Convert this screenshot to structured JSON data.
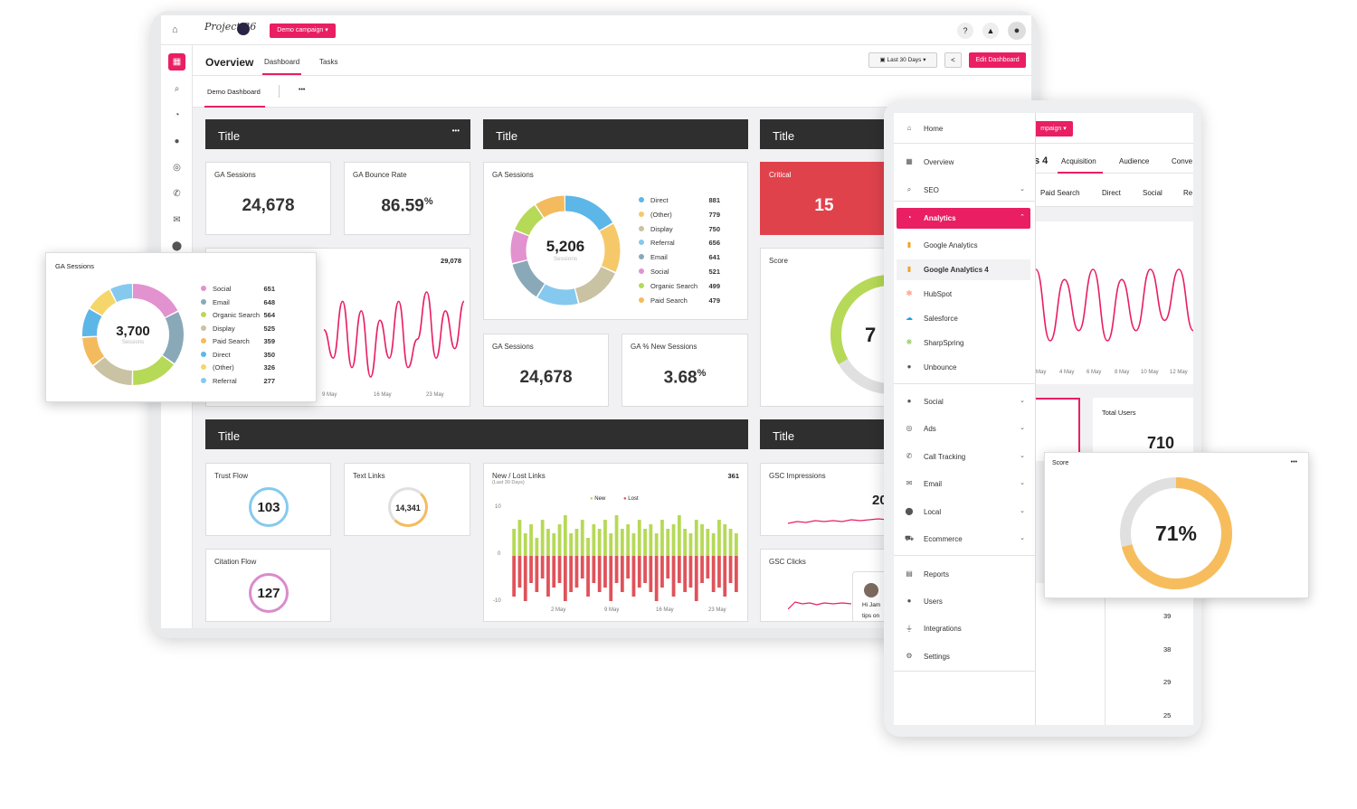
{
  "app": {
    "logo": "Project 36",
    "campaign_button": "Demo campaign",
    "page_title": "Overview",
    "tabs": [
      "Dashboard",
      "Tasks"
    ],
    "date_range": "Last 30 Days",
    "edit_button": "Edit Dashboard",
    "dashboard_tab": "Demo Dashboard",
    "more": "•••"
  },
  "colors": {
    "accent": "#e91e63",
    "critical": "#e0424c",
    "dark": "#2f2f2f"
  },
  "section_titles": [
    "Title",
    "Title",
    "Title",
    "Title",
    "Title"
  ],
  "cards": {
    "ga_sessions": {
      "label": "GA Sessions",
      "value": "24,678"
    },
    "bounce": {
      "label": "GA Bounce Rate",
      "value": "86.59",
      "unit": "%"
    },
    "donut_main": {
      "label": "GA Sessions",
      "total": "5,206",
      "sub": "Sessions"
    },
    "critical": {
      "label": "Critical",
      "value": "15"
    },
    "line_card": {
      "value": "29,078",
      "ticks": [
        "9 May",
        "16 May",
        "23 May"
      ]
    },
    "ga_sessions2": {
      "label": "GA Sessions",
      "value": "24,678"
    },
    "new_sessions": {
      "label": "GA % New Sessions",
      "value": "3.68",
      "unit": "%"
    },
    "score": {
      "label": "Score",
      "value": "7"
    },
    "trust": {
      "label": "Trust Flow",
      "value": "103"
    },
    "textlinks": {
      "label": "Text Links",
      "value": "14,341"
    },
    "citation": {
      "label": "Citation Flow",
      "value": "127"
    },
    "newlost": {
      "label": "New / Lost Links",
      "sub": "(Last 30 Days)",
      "value": "361",
      "legend": [
        "New",
        "Lost"
      ],
      "yticks": [
        "10",
        "0",
        "-10"
      ],
      "xticks": [
        "2 May",
        "9 May",
        "16 May",
        "23 May"
      ]
    },
    "gsc_impr": {
      "label": "GSC Impressions",
      "value": "20"
    },
    "gsc_clicks": {
      "label": "GSC Clicks"
    },
    "chat": {
      "text1": "Hi Jam",
      "text2": "tips on"
    }
  },
  "donut_main_legend": [
    {
      "label": "Direct",
      "value": "881",
      "color": "#5db6e8"
    },
    {
      "label": "(Other)",
      "value": "779",
      "color": "#f5c96a"
    },
    {
      "label": "Display",
      "value": "750",
      "color": "#c9c2a3"
    },
    {
      "label": "Referral",
      "value": "656",
      "color": "#86c9ee"
    },
    {
      "label": "Email",
      "value": "641",
      "color": "#8aa9b8"
    },
    {
      "label": "Social",
      "value": "521",
      "color": "#e292cf"
    },
    {
      "label": "Organic Search",
      "value": "499",
      "color": "#b6d957"
    },
    {
      "label": "Paid Search",
      "value": "479",
      "color": "#f4bb5e"
    }
  ],
  "popup": {
    "label": "GA Sessions",
    "total": "3,700",
    "sub": "Sessions",
    "legend": [
      {
        "label": "Social",
        "value": "651",
        "color": "#e292cf"
      },
      {
        "label": "Email",
        "value": "648",
        "color": "#8aa9b8"
      },
      {
        "label": "Organic Search",
        "value": "564",
        "color": "#b6d957"
      },
      {
        "label": "Display",
        "value": "525",
        "color": "#c9c2a3"
      },
      {
        "label": "Paid Search",
        "value": "359",
        "color": "#f4bb5e"
      },
      {
        "label": "Direct",
        "value": "350",
        "color": "#5db6e8"
      },
      {
        "label": "(Other)",
        "value": "326",
        "color": "#f5d66a"
      },
      {
        "label": "Referral",
        "value": "277",
        "color": "#86c9ee"
      }
    ]
  },
  "tablet": {
    "campaign": "mpaign",
    "heading_frag": "s 4",
    "tabs": [
      "Acquisition",
      "Audience",
      "Conve"
    ],
    "subtabs": [
      "Paid Search",
      "Direct",
      "Social",
      "Re"
    ],
    "axis": [
      "May",
      "4 May",
      "6 May",
      "8 May",
      "10 May",
      "12 May"
    ],
    "total_users_label": "Total Users",
    "total_users": "710",
    "rows": [
      "39",
      "38",
      "29",
      "25"
    ],
    "menu": [
      {
        "label": "Home",
        "icon": "home-icon",
        "glyph": "⌂",
        "chev": ""
      },
      {
        "label": "Overview",
        "icon": "grid-icon",
        "glyph": "▦",
        "chev": ""
      },
      {
        "label": "SEO",
        "icon": "search-icon",
        "glyph": "⌕",
        "chev": "⌄"
      },
      {
        "label": "Analytics",
        "icon": "pie-icon",
        "glyph": "◔",
        "chev": "⌃"
      },
      {
        "label": "Google Analytics",
        "icon": "ga-icon",
        "glyph": "▮",
        "chev": ""
      },
      {
        "label": "Google Analytics 4",
        "icon": "ga4-icon",
        "glyph": "▮",
        "chev": ""
      },
      {
        "label": "HubSpot",
        "icon": "hubspot-icon",
        "glyph": "✻",
        "chev": ""
      },
      {
        "label": "Salesforce",
        "icon": "salesforce-icon",
        "glyph": "☁",
        "chev": ""
      },
      {
        "label": "SharpSpring",
        "icon": "sharpspring-icon",
        "glyph": "❋",
        "chev": ""
      },
      {
        "label": "Unbounce",
        "icon": "unbounce-icon",
        "glyph": "●",
        "chev": ""
      },
      {
        "label": "Social",
        "icon": "chat-icon",
        "glyph": "●",
        "chev": "⌄"
      },
      {
        "label": "Ads",
        "icon": "ads-icon",
        "glyph": "◎",
        "chev": "⌄"
      },
      {
        "label": "Call Tracking",
        "icon": "phone-icon",
        "glyph": "✆",
        "chev": "⌄"
      },
      {
        "label": "Email",
        "icon": "envelope-icon",
        "glyph": "✉",
        "chev": "⌄"
      },
      {
        "label": "Local",
        "icon": "pin-icon",
        "glyph": "⬤",
        "chev": "⌄"
      },
      {
        "label": "Ecommerce",
        "icon": "cart-icon",
        "glyph": "⛟",
        "chev": "⌄"
      },
      {
        "label": "Reports",
        "icon": "report-icon",
        "glyph": "▤",
        "chev": ""
      },
      {
        "label": "Users",
        "icon": "user-icon",
        "glyph": "●",
        "chev": ""
      },
      {
        "label": "Integrations",
        "icon": "plug-icon",
        "glyph": "⏚",
        "chev": ""
      },
      {
        "label": "Settings",
        "icon": "gear-icon",
        "glyph": "⚙",
        "chev": ""
      }
    ]
  },
  "score_popup": {
    "label": "Score",
    "value": "71%",
    "fill": 0.71,
    "more": "•••"
  },
  "chart_data": [
    {
      "type": "line",
      "title": "",
      "values": [
        6,
        3,
        9,
        2,
        8,
        1,
        7,
        3,
        9,
        2,
        5,
        10,
        3,
        8,
        4,
        9
      ]
    },
    {
      "type": "bar",
      "title": "New / Lost Links",
      "series": [
        {
          "name": "New",
          "values": [
            6,
            8,
            5,
            7,
            4,
            8,
            6,
            5,
            7,
            9,
            5,
            6,
            8,
            4,
            7,
            6,
            8,
            5,
            9,
            6,
            7,
            5,
            8,
            6,
            7,
            5,
            8,
            6,
            7,
            9,
            6,
            5,
            8,
            7,
            6,
            5,
            8,
            7,
            6,
            5
          ]
        },
        {
          "name": "Lost",
          "values": [
            -9,
            -7,
            -10,
            -6,
            -8,
            -5,
            -9,
            -7,
            -6,
            -10,
            -8,
            -7,
            -5,
            -9,
            -6,
            -8,
            -7,
            -10,
            -6,
            -8,
            -5,
            -9,
            -7,
            -6,
            -8,
            -10,
            -7,
            -5,
            -9,
            -6,
            -8,
            -7,
            -10,
            -6,
            -5,
            -8,
            -7,
            -9,
            -6,
            -8
          ]
        }
      ],
      "ylim": [
        -10,
        10
      ]
    }
  ]
}
